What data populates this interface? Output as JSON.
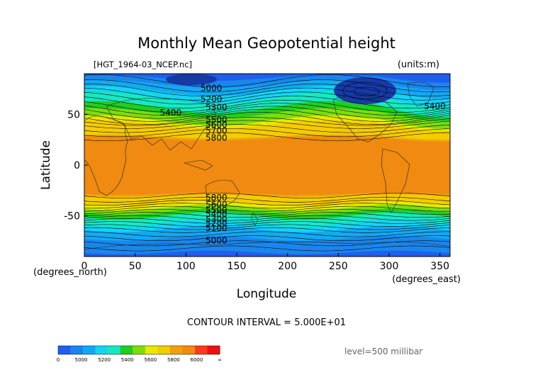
{
  "chart_data": {
    "type": "heatmap",
    "title": "Monthly Mean Geopotential height",
    "file_label": "[HGT_1964-03_NCEP.nc]",
    "units_label": "(units:m)",
    "xlabel": "Longitude",
    "ylabel": "Latitude",
    "x_unit_label": "(degrees_east)",
    "y_unit_label": "(degrees_north)",
    "xlim": [
      0,
      360
    ],
    "ylim": [
      -90,
      90
    ],
    "x_ticks": [
      0,
      50,
      100,
      150,
      200,
      250,
      300,
      350
    ],
    "y_ticks": [
      50,
      0,
      -50
    ],
    "contour_interval_text": "CONTOUR INTERVAL = 5.000E+01",
    "level_text": "level=500 millibar",
    "contour_labels": [
      {
        "value": "5000",
        "lon": 125,
        "lat": 73
      },
      {
        "value": "5200",
        "lon": 125,
        "lat": 62
      },
      {
        "value": "5300",
        "lon": 130,
        "lat": 54
      },
      {
        "value": "5400",
        "lon": 85,
        "lat": 49
      },
      {
        "value": "5500",
        "lon": 130,
        "lat": 42
      },
      {
        "value": "5600",
        "lon": 130,
        "lat": 37
      },
      {
        "value": "5700",
        "lon": 130,
        "lat": 31
      },
      {
        "value": "5800",
        "lon": 130,
        "lat": 24
      },
      {
        "value": "5400",
        "lon": 345,
        "lat": 55
      },
      {
        "value": "5800",
        "lon": 130,
        "lat": -35
      },
      {
        "value": "5600",
        "lon": 130,
        "lat": -42
      },
      {
        "value": "5500",
        "lon": 130,
        "lat": -47
      },
      {
        "value": "5400",
        "lon": 130,
        "lat": -51
      },
      {
        "value": "5300",
        "lon": 130,
        "lat": -56
      },
      {
        "value": "5200",
        "lon": 130,
        "lat": -60
      },
      {
        "value": "5100",
        "lon": 130,
        "lat": -65
      },
      {
        "value": "5000",
        "lon": 130,
        "lat": -77
      }
    ],
    "colorbar": {
      "colors": [
        "#1e5ff0",
        "#1a86ec",
        "#14a8f2",
        "#14d4f2",
        "#18e8c0",
        "#22cc22",
        "#7add10",
        "#e8e800",
        "#f4cc00",
        "#f0a010",
        "#f08a10",
        "#ff3a1a",
        "#ee1010"
      ],
      "labels": [
        "0",
        "5000",
        "5200",
        "5400",
        "5600",
        "5800",
        "6000",
        "∞"
      ]
    }
  }
}
